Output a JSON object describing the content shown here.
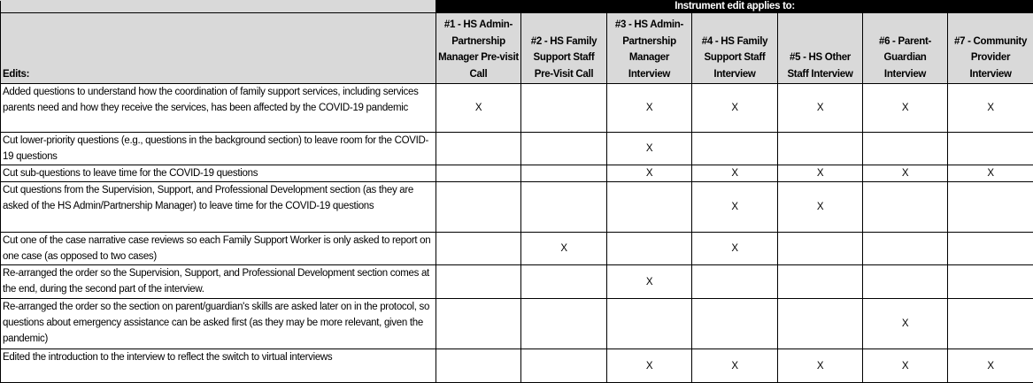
{
  "header": {
    "group_label": "Instrument edit applies to:",
    "edits_label": "Edits:",
    "columns": [
      "#1 - HS Admin-Partnership Manager Pre-visit Call",
      "#2 - HS Family Support Staff Pre-Visit Call",
      "#3 - HS Admin-Partnership Manager Interview",
      "#4 - HS Family Support Staff Interview",
      "#5 - HS Other Staff Interview",
      "#6 - Parent-Guardian Interview",
      "#7 - Community Provider Interview"
    ]
  },
  "rows": [
    {
      "edit": "Added questions to understand how the coordination of family support services, including services parents need and how they receive the services, has been affected by the COVID-19 pandemic",
      "marks": [
        "X",
        "",
        "X",
        "X",
        "X",
        "X",
        "X"
      ]
    },
    {
      "edit": "Cut lower-priority questions (e.g., questions in the background section) to leave room for the COVID-19 questions",
      "marks": [
        "",
        "",
        "X",
        "",
        "",
        "",
        ""
      ]
    },
    {
      "edit": "Cut sub-questions to leave time for the COVID-19 questions",
      "marks": [
        "",
        "",
        "X",
        "X",
        "X",
        "X",
        "X"
      ]
    },
    {
      "edit": "Cut questions from the Supervision, Support, and Professional Development section (as they are asked of the HS Admin/Partnership Manager) to leave time for the COVID-19 questions",
      "marks": [
        "",
        "",
        "",
        "X",
        "X",
        "",
        ""
      ]
    },
    {
      "edit": "Cut one of the case narrative case reviews so each Family Support Worker is only asked to report on one case (as opposed to two cases)",
      "marks": [
        "",
        "X",
        "",
        "X",
        "",
        "",
        ""
      ]
    },
    {
      "edit": "Re-arranged the order so the Supervision, Support, and Professional Development section comes at the end, during the second part of the interview.",
      "marks": [
        "",
        "",
        "X",
        "",
        "",
        "",
        ""
      ]
    },
    {
      "edit": "Re-arranged the order so the section on parent/guardian's skills are asked later on in the protocol, so questions about emergency assistance can be asked first (as they may be more relevant, given the pandemic)",
      "marks": [
        "",
        "",
        "",
        "",
        "",
        "X",
        ""
      ]
    },
    {
      "edit": "Edited the introduction to the interview to reflect the switch to virtual interviews",
      "marks": [
        "",
        "",
        "X",
        "X",
        "X",
        "X",
        "X"
      ]
    }
  ]
}
